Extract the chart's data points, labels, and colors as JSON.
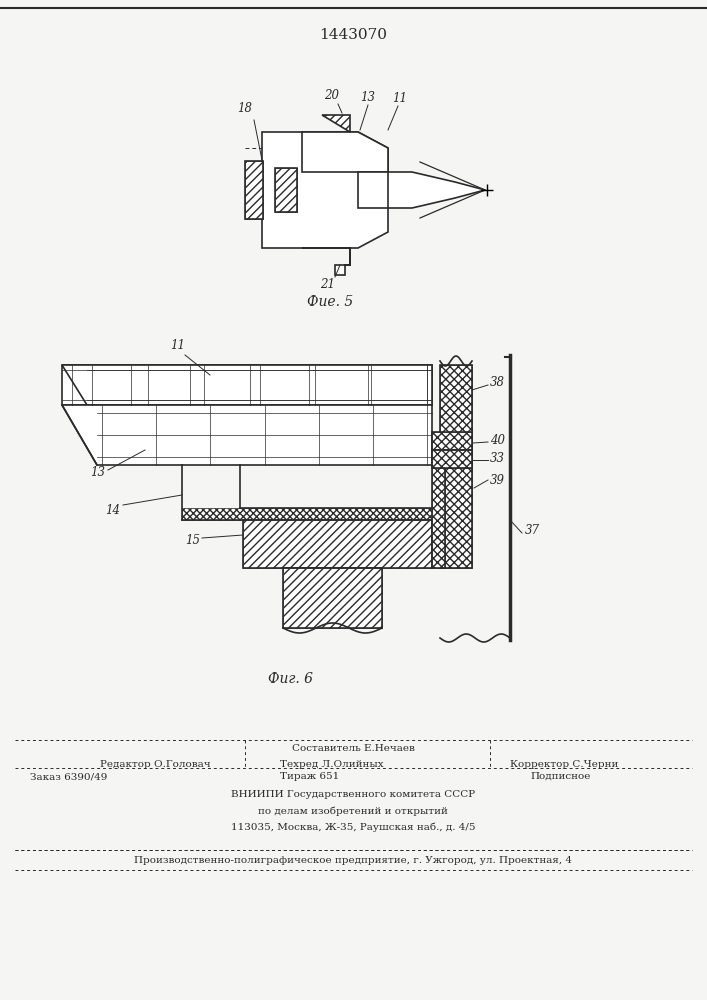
{
  "patent_number": "1443070",
  "bg_color": "#f5f5f3",
  "line_color": "#2a2a2a",
  "fig5_caption": "Фие. 5",
  "fig6_caption": "Фиг. 6",
  "footer_line1_left": "Редактор О.Головач",
  "footer_line1_center": "Составитель Е.Нечаев",
  "footer_line2_center": "Техред Л.Олийных",
  "footer_line2_right": "Корректор С.Черни",
  "footer_zakaz": "Заказ 6390/49",
  "footer_tirazh": "Тираж 651",
  "footer_podpisnoe": "Подписное",
  "footer_vniipki1": "ВНИИПИ Государственного комитета СССР",
  "footer_vniipki2": "по делам изобретений и открытий",
  "footer_vniipki3": "113035, Москва, Ж-35, Раушская наб., д. 4/5",
  "footer_bottom": "Производственно-полиграфическое предприятие, г. Ужгород, ул. Проектная, 4"
}
